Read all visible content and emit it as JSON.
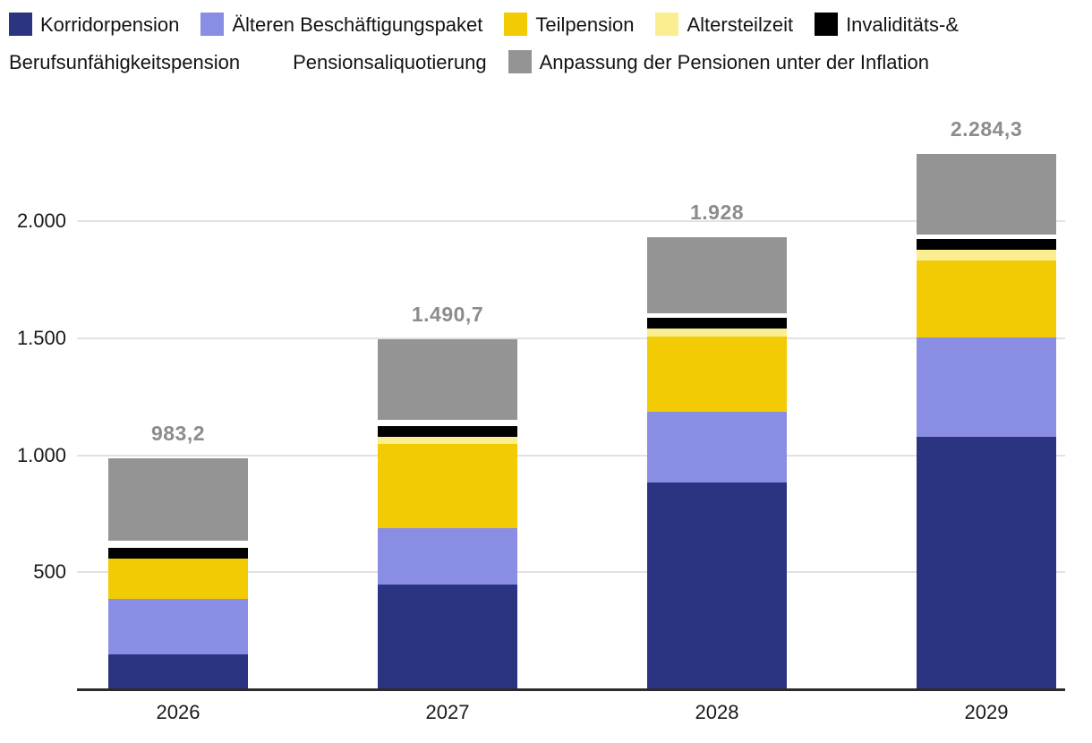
{
  "legend": {
    "items": [
      {
        "label": "Korridorpension",
        "color": "#2A3480",
        "wraps": false
      },
      {
        "label": "Älteren Beschäftigungspaket",
        "color": "#8A8DE4",
        "wraps": false
      },
      {
        "label": "Teilpension",
        "color": "#F2CB05",
        "wraps": false
      },
      {
        "label": "Altersteilzeit",
        "color": "#FBEE90",
        "wraps": false
      },
      {
        "label": "Invaliditäts-& Berufsunfähigkeitspension",
        "color": "#000000",
        "wraps": true
      },
      {
        "label": "Pensionsaliquotierung",
        "color": "#FFFFFF",
        "wraps": false
      },
      {
        "label": "Anpassung der Pensionen unter der Inflation",
        "color": "#949494",
        "wraps": false
      }
    ]
  },
  "chart_data": {
    "type": "bar",
    "stacked": true,
    "title": "",
    "xlabel": "",
    "ylabel": "",
    "categories": [
      "2026",
      "2027",
      "2028",
      "2029"
    ],
    "series": [
      {
        "name": "Korridorpension",
        "color": "#2A3480",
        "values": [
          145,
          443,
          880,
          1073
        ]
      },
      {
        "name": "Älteren Beschäftigungspaket",
        "color": "#8A8DE4",
        "values": [
          237,
          240,
          300,
          427
        ]
      },
      {
        "name": "Teilpension",
        "color": "#F2CB05",
        "values": [
          172,
          363,
          322,
          328
        ]
      },
      {
        "name": "Altersteilzeit",
        "color": "#FBEE90",
        "values": [
          0,
          27,
          34,
          46
        ]
      },
      {
        "name": "Invaliditäts-& Berufsunfähigkeitspension",
        "color": "#000000",
        "values": [
          46,
          46,
          46,
          46
        ]
      },
      {
        "name": "Pensionsaliquotierung",
        "color": "#FFFFFF",
        "values": [
          30,
          27,
          19,
          19
        ]
      },
      {
        "name": "Anpassung der Pensionen unter der Inflation",
        "color": "#949494",
        "values": [
          353.2,
          344.7,
          327,
          345.3
        ]
      }
    ],
    "totals": [
      983.2,
      1490.7,
      1928,
      2284.3
    ],
    "total_labels": [
      "983,2",
      "1.490,7",
      "1.928",
      "2.284,3"
    ],
    "y_ticks": [
      {
        "value": 500,
        "label": "500"
      },
      {
        "value": 1000,
        "label": "1.000"
      },
      {
        "value": 1500,
        "label": "1.500"
      },
      {
        "value": 2000,
        "label": "2.000"
      }
    ],
    "ylim": [
      0,
      2300
    ],
    "grid": true,
    "legend_position": "top",
    "total_label_color": "#8c8c8c",
    "gridline_color": "#e2e2e2",
    "axis_color": "#2b2b2b"
  }
}
